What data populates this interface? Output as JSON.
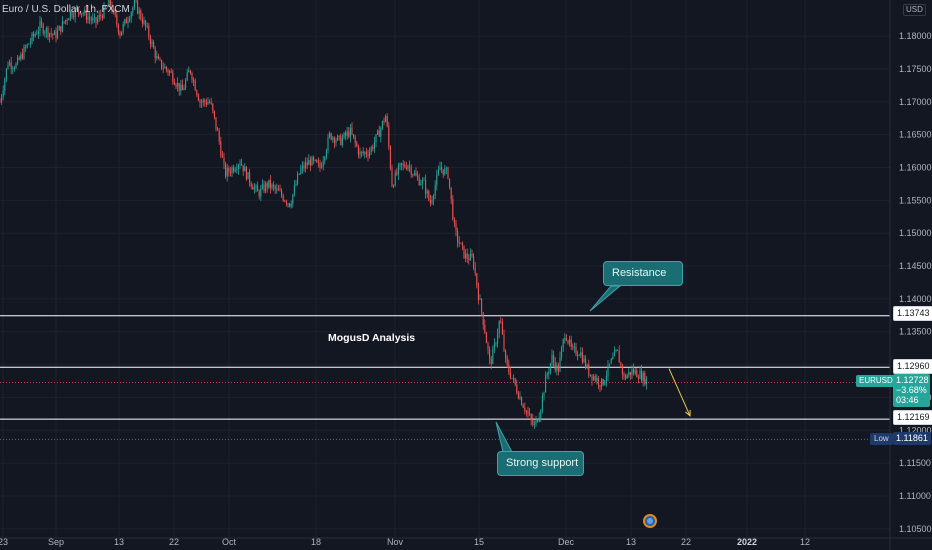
{
  "header": {
    "title": "Euro / U.S. Dollar, 1h, FXCM",
    "currency": "USD"
  },
  "annotations": {
    "analysis": "MogusD Analysis",
    "resistance": "Resistance",
    "support": "Strong support"
  },
  "price_badges": {
    "level_1": "1.13743",
    "level_2": "1.12960",
    "level_3": "1.12169",
    "symbol": "EURUSD",
    "last_price": "1.12728",
    "change": "−3.68%",
    "countdown": "03:46",
    "low_label": "Low",
    "low_value": "1.11861"
  },
  "colors": {
    "background": "#131722",
    "up": "#26a69a",
    "down": "#ef5350",
    "grid": "#1e222d",
    "level_line": "#ffffff",
    "forecast_arrow": "#e6c84a",
    "callout": "#1a6e73"
  },
  "chart_data": {
    "type": "candlestick",
    "instrument": "EURUSD",
    "timeframe": "1h",
    "y_ticks": [
      "1.18000",
      "1.17500",
      "1.17000",
      "1.16500",
      "1.16000",
      "1.15500",
      "1.15000",
      "1.14500",
      "1.14000",
      "1.13500",
      "1.13000",
      "1.12500",
      "1.12000",
      "1.11500",
      "1.11000",
      "1.10500"
    ],
    "x_ticks": [
      {
        "label": "23"
      },
      {
        "label": "Sep"
      },
      {
        "label": "13"
      },
      {
        "label": "22"
      },
      {
        "label": "Oct"
      },
      {
        "label": "18"
      },
      {
        "label": "Nov"
      },
      {
        "label": "15"
      },
      {
        "label": "Dec"
      },
      {
        "label": "13"
      },
      {
        "label": "22"
      },
      {
        "label": "2022",
        "bold": true
      },
      {
        "label": "12"
      }
    ],
    "ylim": [
      1.1036,
      1.1855
    ],
    "horizontal_levels": [
      1.13743,
      1.1296,
      1.12169
    ],
    "low": 1.11861,
    "last": 1.12728,
    "price_path": [
      [
        0,
        1.17
      ],
      [
        8,
        1.176
      ],
      [
        16,
        1.1755
      ],
      [
        25,
        1.178
      ],
      [
        40,
        1.1815
      ],
      [
        55,
        1.18
      ],
      [
        70,
        1.1835
      ],
      [
        80,
        1.184
      ],
      [
        95,
        1.182
      ],
      [
        110,
        1.185
      ],
      [
        120,
        1.1805
      ],
      [
        135,
        1.185
      ],
      [
        148,
        1.1805
      ],
      [
        158,
        1.176
      ],
      [
        170,
        1.1745
      ],
      [
        182,
        1.1715
      ],
      [
        190,
        1.175
      ],
      [
        200,
        1.17
      ],
      [
        210,
        1.17
      ],
      [
        218,
        1.165
      ],
      [
        225,
        1.159
      ],
      [
        233,
        1.16
      ],
      [
        240,
        1.161
      ],
      [
        248,
        1.1585
      ],
      [
        258,
        1.156
      ],
      [
        268,
        1.1575
      ],
      [
        280,
        1.156
      ],
      [
        290,
        1.1545
      ],
      [
        300,
        1.1595
      ],
      [
        310,
        1.161
      ],
      [
        320,
        1.16
      ],
      [
        330,
        1.165
      ],
      [
        340,
        1.164
      ],
      [
        350,
        1.1655
      ],
      [
        360,
        1.162
      ],
      [
        370,
        1.1625
      ],
      [
        378,
        1.165
      ],
      [
        386,
        1.168
      ],
      [
        392,
        1.1575
      ],
      [
        400,
        1.16
      ],
      [
        408,
        1.1605
      ],
      [
        416,
        1.1585
      ],
      [
        424,
        1.1575
      ],
      [
        430,
        1.1545
      ],
      [
        440,
        1.16
      ],
      [
        448,
        1.159
      ],
      [
        455,
        1.15
      ],
      [
        465,
        1.1465
      ],
      [
        473,
        1.146
      ],
      [
        478,
        1.141
      ],
      [
        484,
        1.136
      ],
      [
        490,
        1.13
      ],
      [
        495,
        1.133
      ],
      [
        500,
        1.137
      ],
      [
        506,
        1.13
      ],
      [
        512,
        1.128
      ],
      [
        520,
        1.125
      ],
      [
        526,
        1.123
      ],
      [
        534,
        1.1205
      ],
      [
        540,
        1.123
      ],
      [
        546,
        1.128
      ],
      [
        552,
        1.131
      ],
      [
        558,
        1.129
      ],
      [
        565,
        1.135
      ],
      [
        572,
        1.132
      ],
      [
        580,
        1.132
      ],
      [
        588,
        1.129
      ],
      [
        595,
        1.128
      ],
      [
        602,
        1.127
      ],
      [
        610,
        1.13
      ],
      [
        617,
        1.132
      ],
      [
        624,
        1.128
      ],
      [
        632,
        1.129
      ],
      [
        640,
        1.1285
      ],
      [
        648,
        1.1273
      ]
    ],
    "forecast_arrow": {
      "from": [
        669,
        1.1294
      ],
      "to": [
        690,
        1.1222
      ]
    }
  }
}
